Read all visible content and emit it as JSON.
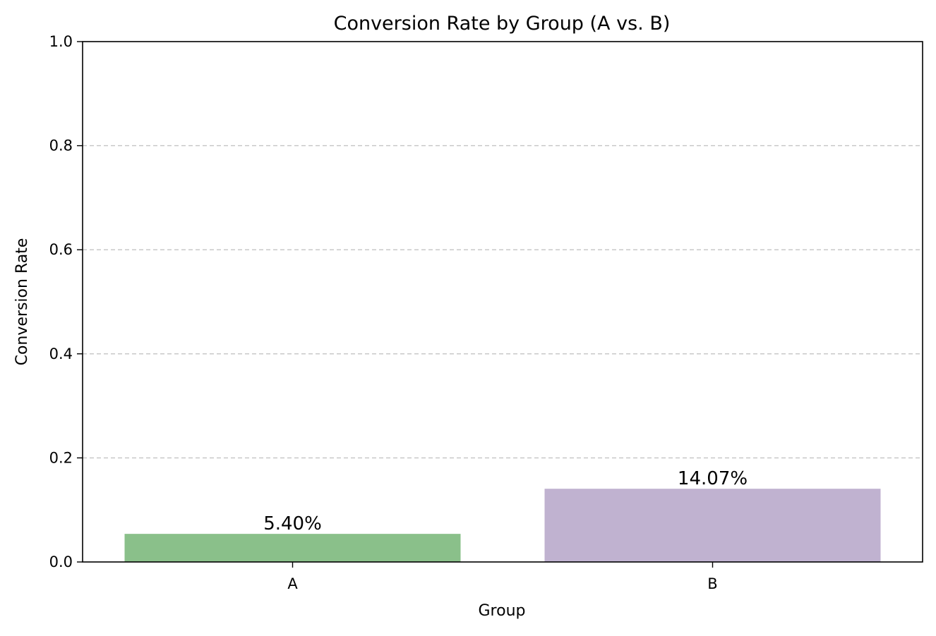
{
  "chart_data": {
    "type": "bar",
    "title": "Conversion Rate by Group (A vs. B)",
    "xlabel": "Group",
    "ylabel": "Conversion Rate",
    "categories": [
      "A",
      "B"
    ],
    "values": [
      0.054,
      0.1407
    ],
    "data_labels": [
      "5.40%",
      "14.07%"
    ],
    "colors": [
      "#8ac08a",
      "#c0b2d0"
    ],
    "ylim": [
      0,
      1.0
    ],
    "yticks": [
      0.0,
      0.2,
      0.4,
      0.6,
      0.8,
      1.0
    ],
    "ytick_labels": [
      "0.0",
      "0.2",
      "0.4",
      "0.6",
      "0.8",
      "1.0"
    ],
    "grid": "y-dashed",
    "legend": "none"
  }
}
